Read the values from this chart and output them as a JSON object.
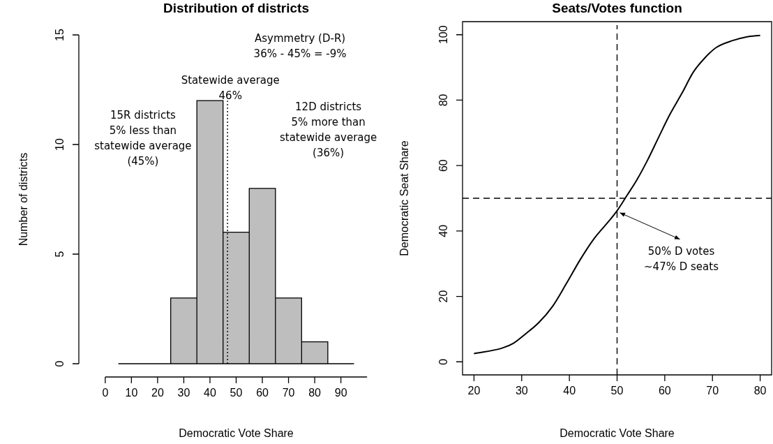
{
  "chart_data": [
    {
      "type": "histogram",
      "title": "Distribution of districts",
      "xlabel": "Democratic Vote Share",
      "ylabel": "Number of districts",
      "bins": [
        5,
        15,
        25,
        35,
        45,
        55,
        65,
        75,
        85,
        95
      ],
      "values": [
        0,
        0,
        3,
        12,
        6,
        8,
        3,
        1,
        0
      ],
      "color": "#bebebe",
      "xlim": [
        0,
        100
      ],
      "xticks": [
        0,
        10,
        20,
        30,
        40,
        50,
        60,
        70,
        80,
        90
      ],
      "ylim": [
        0,
        15
      ],
      "yticks": [
        0,
        5,
        10,
        15
      ],
      "grid": false,
      "legend": false,
      "ref_lines": [
        {
          "axis": "x",
          "value": 46.7,
          "label": "Statewide average\n46%",
          "line_style": "dotted",
          "color": "#000000"
        }
      ],
      "annotations": [
        "Asymmetry (D-R)\n36% - 45% = -9%",
        "15R districts\n5% less than\nstatewide average\n(45%)",
        "12D districts\n5% more than\nstatewide average\n(36%)"
      ]
    },
    {
      "type": "line",
      "title": "Seats/Votes function",
      "xlabel": "Democratic Vote Share",
      "ylabel": "Democratic Seat Share",
      "x": [
        20,
        25.9,
        28.3,
        30.7,
        33.6,
        36.5,
        39.4,
        42.3,
        45.2,
        48.1,
        50,
        52,
        53.9,
        56.3,
        58.7,
        61.1,
        63.6,
        66,
        68.4,
        70.8,
        74.2,
        77.1,
        80
      ],
      "series": [
        {
          "color": "#000000",
          "values": [
            2.5,
            4.2,
            5.7,
            8.4,
            12,
            17,
            24,
            31.3,
            37.7,
            42.7,
            46.2,
            50.7,
            55,
            61.4,
            68.6,
            75.7,
            82.1,
            88.6,
            92.9,
            96.1,
            98.2,
            99.3,
            99.8
          ]
        }
      ],
      "xlim": [
        17.6,
        82.4
      ],
      "xticks": [
        20,
        30,
        40,
        50,
        60,
        70,
        80
      ],
      "ylim": [
        -4,
        104
      ],
      "yticks": [
        0,
        20,
        40,
        60,
        80,
        100
      ],
      "grid": false,
      "legend": false,
      "ref_lines": [
        {
          "axis": "x",
          "value": 50,
          "line_style": "dashed",
          "color": "#000000"
        },
        {
          "axis": "y",
          "value": 50,
          "line_style": "dashed",
          "color": "#000000"
        }
      ],
      "annotations": [
        {
          "text": "50% D votes\n~47% D seats",
          "x": 50,
          "y": 46
        }
      ]
    }
  ]
}
